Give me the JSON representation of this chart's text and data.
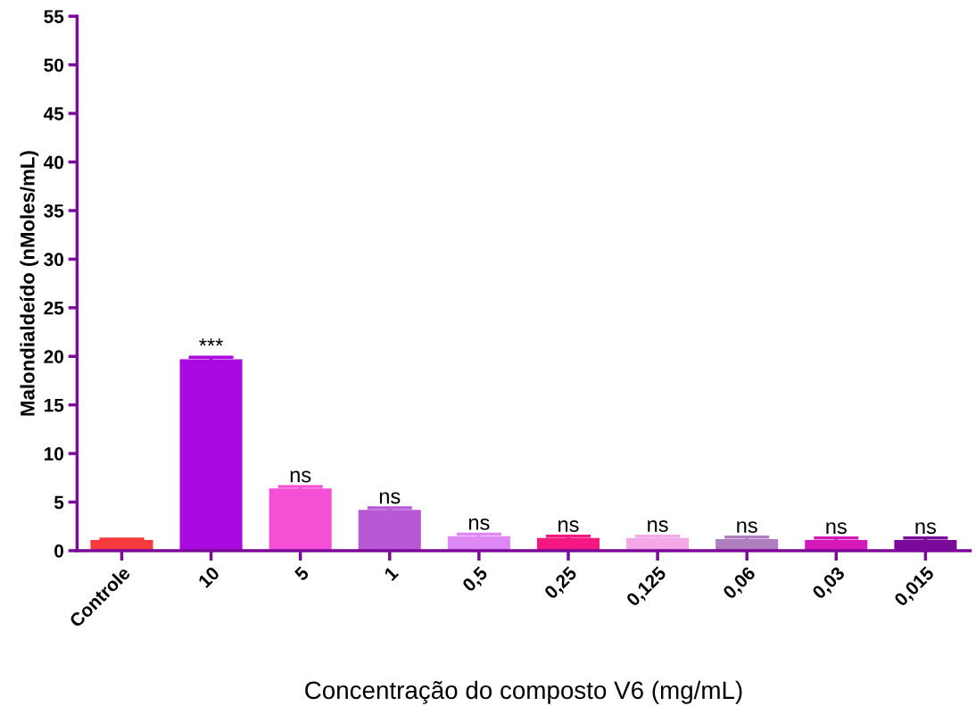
{
  "chart_data": {
    "type": "bar",
    "xlabel": "Concentração do composto V6 (mg/mL)",
    "ylabel": "Malondialdeído (nMoles/mL)",
    "categories": [
      "Controle",
      "10",
      "5",
      "1",
      "0,5",
      "0,25",
      "0,125",
      "0,06",
      "0,03",
      "0,015"
    ],
    "values": [
      1.1,
      19.7,
      6.4,
      4.2,
      1.5,
      1.3,
      1.3,
      1.2,
      1.1,
      1.1
    ],
    "errors": [
      0.1,
      0.2,
      0.2,
      0.2,
      0.2,
      0.2,
      0.2,
      0.2,
      0.2,
      0.2
    ],
    "colors": [
      "#f53b3b",
      "#aa0ae0",
      "#f550d5",
      "#b858d6",
      "#dd88f5",
      "#f51880",
      "#f5a8e6",
      "#b07fc0",
      "#d518b8",
      "#7a0a9a"
    ],
    "ylim": [
      0,
      55
    ],
    "yticks": [
      0,
      5,
      10,
      15,
      20,
      25,
      30,
      35,
      40,
      45,
      50,
      55
    ],
    "grid": false,
    "legend": false,
    "annotations": [
      {
        "text": "***",
        "x": "10",
        "y": 19.9
      },
      {
        "text": "ns",
        "x": "5",
        "y": 6.6
      },
      {
        "text": "ns",
        "x": "1",
        "y": 4.4
      },
      {
        "text": "ns",
        "x": "0,5",
        "y": 1.7
      },
      {
        "text": "ns",
        "x": "0,25",
        "y": 1.5
      },
      {
        "text": "ns",
        "x": "0,125",
        "y": 1.5
      },
      {
        "text": "ns",
        "x": "0,06",
        "y": 1.4
      },
      {
        "text": "ns",
        "x": "0,03",
        "y": 1.3
      },
      {
        "text": "ns",
        "x": "0,015",
        "y": 1.3
      }
    ]
  }
}
